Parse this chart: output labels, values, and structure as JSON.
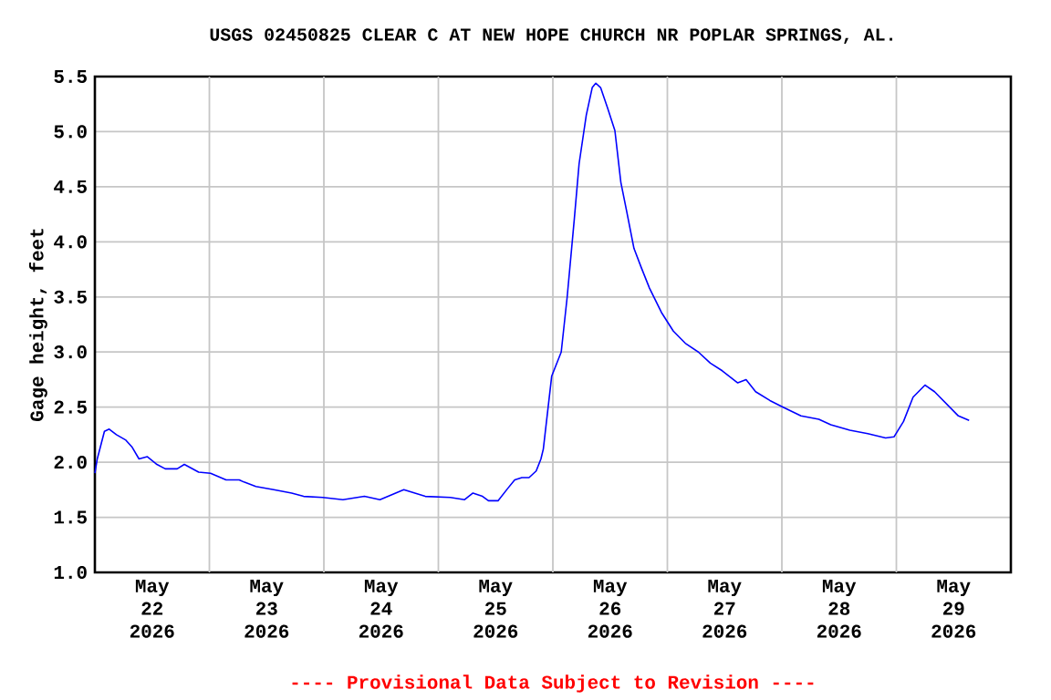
{
  "chart_data": {
    "type": "line",
    "title": "USGS 02450825 CLEAR C AT NEW HOPE CHURCH NR POPLAR SPRINGS, AL.",
    "ylabel": "Gage height, feet",
    "annotations": [
      "---- Provisional Data Subject to Revision ----"
    ],
    "color": "#0000ff",
    "grid": true,
    "xlim": [
      "2026-05-22T00:00",
      "2026-05-30T00:00"
    ],
    "ylim": [
      1.0,
      5.5
    ],
    "yticks": [
      {
        "value": 1,
        "label": "1.0"
      },
      1.5,
      {
        "value": 2,
        "label": "2.0"
      },
      2.5,
      {
        "value": 3,
        "label": "3.0"
      },
      3.5,
      {
        "value": 4,
        "label": "4.0"
      },
      4.5,
      {
        "value": 5,
        "label": "5.0"
      },
      5.5
    ],
    "xticks": [
      {
        "value": "2026-05-22T12:00",
        "label": "May 22 2026"
      },
      {
        "value": "2026-05-23T12:00",
        "label": "May 23 2026"
      },
      {
        "value": "2026-05-24T12:00",
        "label": "May 24 2026"
      },
      {
        "value": "2026-05-25T12:00",
        "label": "May 25 2026"
      },
      {
        "value": "2026-05-26T12:00",
        "label": "May 26 2026"
      },
      {
        "value": "2026-05-27T12:00",
        "label": "May 27 2026"
      },
      {
        "value": "2026-05-28T12:00",
        "label": "May 28 2026"
      },
      {
        "value": "2026-05-29T12:00",
        "label": "May 29 2026"
      },
      {
        "value": "2026-05-23T00:00",
        "label": null
      },
      {
        "value": "2026-05-24T00:00",
        "label": null
      },
      {
        "value": "2026-05-25T00:00",
        "label": null
      },
      {
        "value": "2026-05-26T00:00",
        "label": null
      },
      {
        "value": "2026-05-27T00:00",
        "label": null
      },
      {
        "value": "2026-05-28T00:00",
        "label": null
      },
      {
        "value": "2026-05-29T00:00",
        "label": null
      }
    ],
    "x": [
      "2026-05-22T00:00",
      "2026-05-22T00:30",
      "2026-05-22T02:00",
      "2026-05-22T03:00",
      "2026-05-22T04:30",
      "2026-05-22T06:30",
      "2026-05-22T07:45",
      "2026-05-22T09:15",
      "2026-05-22T11:00",
      "2026-05-22T13:00",
      "2026-05-22T14:45",
      "2026-05-22T17:15",
      "2026-05-22T18:45",
      "2026-05-22T21:45",
      "2026-05-23T00:15",
      "2026-05-23T03:30",
      "2026-05-23T06:15",
      "2026-05-23T07:15",
      "2026-05-23T09:45",
      "2026-05-23T13:30",
      "2026-05-23T17:15",
      "2026-05-23T19:45",
      "2026-05-23T23:45",
      "2026-05-24T04:00",
      "2026-05-24T08:30",
      "2026-05-24T11:45",
      "2026-05-24T16:45",
      "2026-05-24T21:15",
      "2026-05-25T02:30",
      "2026-05-25T05:30",
      "2026-05-25T07:15",
      "2026-05-25T09:15",
      "2026-05-25T10:30",
      "2026-05-25T12:30",
      "2026-05-25T14:30",
      "2026-05-25T16:00",
      "2026-05-25T17:30",
      "2026-05-25T19:00",
      "2026-05-25T20:30",
      "2026-05-25T21:30",
      "2026-05-25T22:00",
      "2026-05-25T23:45",
      "2026-05-26T01:45",
      "2026-05-26T03:00",
      "2026-05-26T04:30",
      "2026-05-26T05:30",
      "2026-05-26T07:00",
      "2026-05-26T08:15",
      "2026-05-26T09:00",
      "2026-05-26T10:00",
      "2026-05-26T11:30",
      "2026-05-26T13:00",
      "2026-05-26T14:15",
      "2026-05-26T15:30",
      "2026-05-26T17:00",
      "2026-05-26T18:30",
      "2026-05-26T20:15",
      "2026-05-26T22:45",
      "2026-05-27T01:15",
      "2026-05-27T03:45",
      "2026-05-27T06:30",
      "2026-05-27T09:00",
      "2026-05-27T11:30",
      "2026-05-27T14:45",
      "2026-05-27T16:30",
      "2026-05-27T18:30",
      "2026-05-27T21:30",
      "2026-05-28T00:15",
      "2026-05-28T04:00",
      "2026-05-28T07:45",
      "2026-05-28T10:15",
      "2026-05-28T14:15",
      "2026-05-28T18:00",
      "2026-05-28T21:45",
      "2026-05-28T23:30",
      "2026-05-29T01:30",
      "2026-05-29T03:30",
      "2026-05-29T06:00",
      "2026-05-29T08:00",
      "2026-05-29T10:30",
      "2026-05-29T13:00",
      "2026-05-29T15:15"
    ],
    "values": [
      1.9,
      2.03,
      2.28,
      2.3,
      2.25,
      2.2,
      2.14,
      2.03,
      2.05,
      1.98,
      1.94,
      1.94,
      1.98,
      1.91,
      1.9,
      1.84,
      1.84,
      1.82,
      1.78,
      1.75,
      1.72,
      1.69,
      1.68,
      1.66,
      1.69,
      1.66,
      1.75,
      1.69,
      1.68,
      1.66,
      1.72,
      1.69,
      1.65,
      1.65,
      1.76,
      1.84,
      1.86,
      1.86,
      1.92,
      2.03,
      2.12,
      2.78,
      3.0,
      3.5,
      4.21,
      4.71,
      5.15,
      5.4,
      5.44,
      5.4,
      5.21,
      5.01,
      4.54,
      4.27,
      3.94,
      3.77,
      3.58,
      3.36,
      3.19,
      3.08,
      3.0,
      2.9,
      2.83,
      2.72,
      2.75,
      2.64,
      2.56,
      2.5,
      2.42,
      2.39,
      2.34,
      2.29,
      2.26,
      2.22,
      2.23,
      2.37,
      2.59,
      2.7,
      2.64,
      2.53,
      2.42,
      2.38
    ]
  }
}
